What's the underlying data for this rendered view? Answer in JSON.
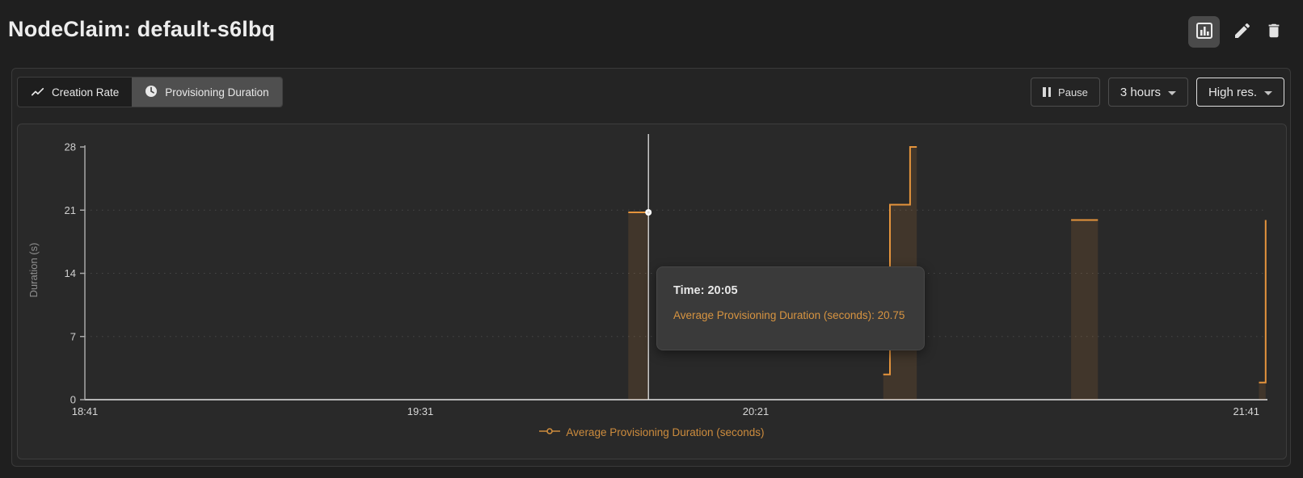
{
  "header": {
    "title": "NodeClaim: default-s6lbq",
    "actions": {
      "chart_view_icon": "bar-chart",
      "edit_icon": "pencil",
      "delete_icon": "trash"
    }
  },
  "toolbar": {
    "tabs": [
      {
        "label": "Creation Rate",
        "icon": "trend-line",
        "active": false
      },
      {
        "label": "Provisioning Duration",
        "icon": "clock",
        "active": true
      }
    ],
    "pause_label": "Pause",
    "range_label": "3 hours",
    "resolution_label": "High res."
  },
  "tooltip": {
    "time_label": "Time: 20:05",
    "value_label": "Average Provisioning Duration (seconds): 20.75"
  },
  "legend": {
    "label": "Average Provisioning Duration (seconds)"
  },
  "colors": {
    "series_orange": "#E5943C",
    "series_fill": "rgba(229,148,60,0.13)",
    "legend_orange": "#CD8C3D",
    "axis": "#a8a8a8",
    "grid": "rgba(255,255,255,0.14)",
    "crosshair": "#e2e2e2"
  },
  "chart_data": {
    "type": "step-line",
    "title": "",
    "xlabel": "",
    "ylabel": "Duration (s)",
    "yticks": [
      0,
      7,
      14,
      21,
      28
    ],
    "ylim": [
      0,
      28
    ],
    "grid_values": [
      7,
      14,
      21
    ],
    "x_axis": {
      "start": "18:41",
      "end": "21:41",
      "total_minutes": 180,
      "ticks": [
        "18:41",
        "19:31",
        "20:21",
        "21:41"
      ]
    },
    "series": [
      {
        "name": "Average Provisioning Duration (seconds)",
        "segments": [
          [
            [
              "20:02",
              20.75
            ],
            [
              "20:05",
              20.75
            ]
          ],
          [
            [
              "20:40",
              2.8
            ],
            [
              "20:41",
              2.8
            ],
            [
              "20:41",
              21.6
            ],
            [
              "20:44",
              21.6
            ],
            [
              "20:44",
              28
            ],
            [
              "20:45",
              28
            ]
          ],
          [
            [
              "21:08",
              19.9
            ],
            [
              "21:12",
              19.9
            ]
          ],
          [
            [
              "21:36",
              1.9
            ],
            [
              "21:37",
              1.9
            ],
            [
              "21:37",
              19.9
            ]
          ]
        ]
      }
    ],
    "crosshair": {
      "time": "20:05",
      "value": 20.75
    }
  }
}
